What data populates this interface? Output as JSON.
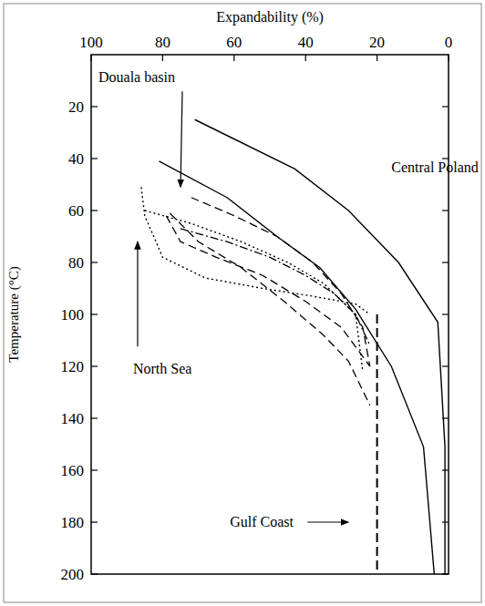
{
  "chart_data": {
    "type": "line",
    "xlabel": "Expandability (%)",
    "ylabel": "Temperature (°C)",
    "xlim": [
      100,
      0
    ],
    "ylim": [
      200,
      0
    ],
    "xticks": [
      100,
      80,
      60,
      40,
      20,
      0
    ],
    "yticks": [
      20,
      40,
      60,
      80,
      100,
      120,
      140,
      160,
      180,
      200
    ],
    "grid": false,
    "series": [
      {
        "color": "#000000",
        "line_style": "solid",
        "x": [
          71,
          43,
          28,
          14,
          3,
          1,
          1
        ],
        "values": [
          25,
          44,
          60,
          80,
          103,
          151,
          200
        ]
      },
      {
        "color": "#000000",
        "line_style": "solid",
        "x": [
          81,
          62,
          48,
          36,
          26,
          16,
          7,
          4
        ],
        "values": [
          41,
          55,
          70,
          82,
          98,
          120,
          151,
          200
        ]
      },
      {
        "color": "#000000",
        "line_style": "dashed",
        "x": [
          72,
          60,
          48,
          38,
          30,
          24,
          22
        ],
        "values": [
          55,
          62,
          70,
          80,
          92,
          105,
          120
        ]
      },
      {
        "color": "#000000",
        "line_style": "dashed",
        "x": [
          78,
          70,
          58,
          46,
          35,
          28,
          22
        ],
        "values": [
          61,
          72,
          82,
          95,
          108,
          118,
          135
        ]
      },
      {
        "color": "#000000",
        "line_style": "dashed",
        "x": [
          79,
          75,
          65,
          52,
          40,
          30,
          22
        ],
        "values": [
          62,
          72,
          78,
          85,
          95,
          105,
          120
        ]
      },
      {
        "color": "#000000",
        "line_style": "dotted",
        "x": [
          86,
          85,
          80,
          68,
          52,
          38,
          26,
          22
        ],
        "values": [
          51,
          62,
          78,
          86,
          90,
          93,
          96,
          100
        ]
      },
      {
        "color": "#000000",
        "line_style": "dotted",
        "x": [
          85,
          72,
          58,
          45,
          35,
          26,
          24
        ],
        "values": [
          60,
          65,
          72,
          80,
          88,
          100,
          122
        ]
      },
      {
        "color": "#000000",
        "line_style": "dashdot",
        "x": [
          75,
          62,
          50,
          40,
          32,
          26,
          22
        ],
        "values": [
          67,
          72,
          78,
          85,
          92,
          100,
          112
        ]
      },
      {
        "color": "#000000",
        "line_style": "longdash",
        "x": [
          20,
          20
        ],
        "values": [
          100,
          200
        ]
      }
    ],
    "annotations": [
      {
        "text": "Central Poland",
        "x": 16,
        "y": 43
      },
      {
        "text": "Douala basin",
        "x": 75,
        "y": 51
      },
      {
        "text": "North Sea",
        "x": 87,
        "y": 72
      },
      {
        "text": "Gulf Coast",
        "x": 28,
        "y": 180
      }
    ]
  }
}
